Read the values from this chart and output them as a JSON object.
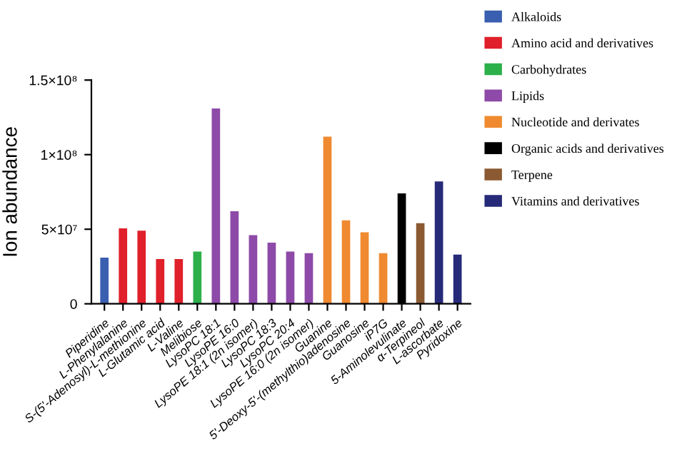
{
  "chart_data": {
    "type": "bar",
    "ylabel": "Ion abundance",
    "categories": [
      "Piperidine",
      "L-Phenylalanine",
      "S-(5'-Adenosyl)-L-methionine",
      "L-Glutamic acid",
      "L-Valine",
      "Melibiose",
      "LysoPC 18:1",
      "LysoPE 16:0",
      "LysoPE 18:1 (2n isomer)",
      "LysoPC 18:3",
      "LysoPC 20:4",
      "LysoPE 16:0 (2n isomer)",
      "Guanine",
      "5'-Deoxy-5'-(methylthio)adenosine",
      "Guanosine",
      "iP7G",
      "5-Aminolevulinate",
      "α-Terpineol",
      "L-ascorbate",
      "Pyridoxine"
    ],
    "series": [
      {
        "name": "Alkaloids",
        "color": "#3a5fb0",
        "values": [
          31000000,
          null,
          null,
          null,
          null,
          null,
          null,
          null,
          null,
          null,
          null,
          null,
          null,
          null,
          null,
          null,
          null,
          null,
          null,
          null
        ]
      },
      {
        "name": "Amino acid and derivatives",
        "color": "#e0202a",
        "values": [
          null,
          50600000,
          49000000,
          30000000,
          30000000,
          null,
          null,
          null,
          null,
          null,
          null,
          null,
          null,
          null,
          null,
          null,
          null,
          null,
          null,
          null
        ]
      },
      {
        "name": "Carbohydrates",
        "color": "#2db04a",
        "values": [
          null,
          null,
          null,
          null,
          null,
          35000000,
          null,
          null,
          null,
          null,
          null,
          null,
          null,
          null,
          null,
          null,
          null,
          null,
          null,
          null
        ]
      },
      {
        "name": "Lipids",
        "color": "#8e4aa8",
        "values": [
          null,
          null,
          null,
          null,
          null,
          null,
          131000000,
          62000000,
          46000000,
          41000000,
          35000000,
          34000000,
          null,
          null,
          null,
          null,
          null,
          null,
          null,
          null
        ]
      },
      {
        "name": "Nucleotide and derivates",
        "color": "#f08a30",
        "values": [
          null,
          null,
          null,
          null,
          null,
          null,
          null,
          null,
          null,
          null,
          null,
          null,
          112000000,
          56000000,
          48000000,
          34000000,
          null,
          null,
          null,
          null
        ]
      },
      {
        "name": "Organic acids and derivatives",
        "color": "#000000",
        "values": [
          null,
          null,
          null,
          null,
          null,
          null,
          null,
          null,
          null,
          null,
          null,
          null,
          null,
          null,
          null,
          null,
          74000000,
          null,
          null,
          null
        ]
      },
      {
        "name": "Terpene",
        "color": "#8c5a32",
        "values": [
          null,
          null,
          null,
          null,
          null,
          null,
          null,
          null,
          null,
          null,
          null,
          null,
          null,
          null,
          null,
          null,
          null,
          54000000,
          null,
          null
        ]
      },
      {
        "name": "Vitamins and derivatives",
        "color": "#262a78",
        "values": [
          null,
          null,
          null,
          null,
          null,
          null,
          null,
          null,
          null,
          null,
          null,
          null,
          null,
          null,
          null,
          null,
          null,
          null,
          82000000,
          33000000
        ]
      }
    ],
    "ylim": [
      0,
      150000000
    ],
    "yticks": [
      {
        "value": 0,
        "label": "0"
      },
      {
        "value": 50000000,
        "label": "5×10⁷"
      },
      {
        "value": 100000000,
        "label": "1×10⁸"
      },
      {
        "value": 150000000,
        "label": "1.5×10⁸"
      }
    ],
    "grid": false,
    "legend": "top right"
  }
}
